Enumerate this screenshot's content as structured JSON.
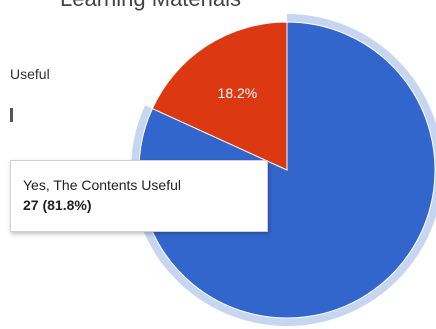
{
  "header": {
    "title": "Learning Materials"
  },
  "legend": {
    "item_label": "Useful"
  },
  "chart_data": {
    "type": "pie",
    "slices": [
      {
        "label": "Yes, The Contents Useful",
        "value": 27,
        "percent": 81.8,
        "percent_label": "",
        "color": "#3366cc"
      },
      {
        "label": "",
        "value": 6,
        "percent": 18.2,
        "percent_label": "18.2%",
        "color": "#dc3912"
      }
    ],
    "highlight": "#c6d6f0"
  },
  "tooltip": {
    "label": "Yes, The Contents Useful",
    "value_text": "27 (81.8%)"
  }
}
